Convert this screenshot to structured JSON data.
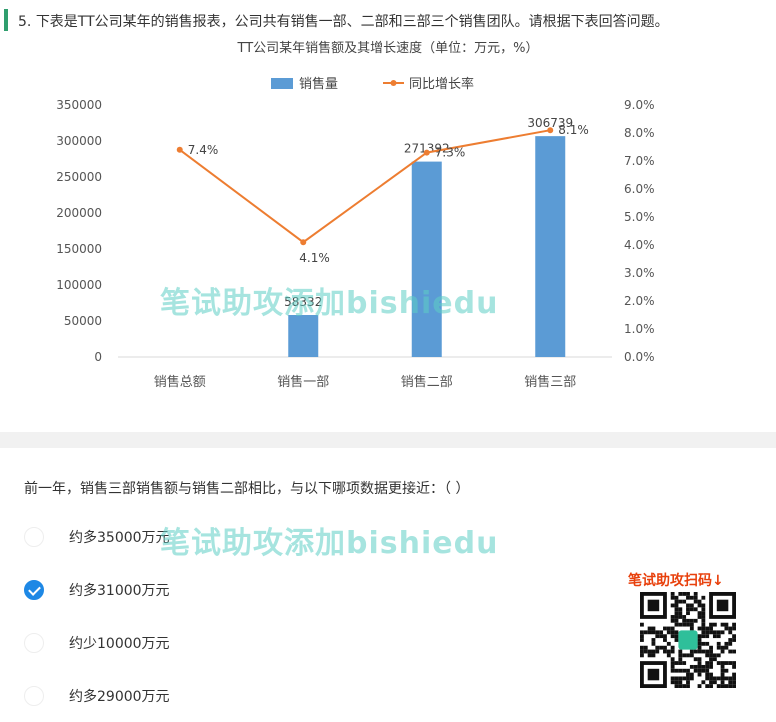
{
  "question": {
    "number": "5.",
    "text": "下表是TT公司某年的销售报表，公司共有销售一部、二部和三部三个销售团队。请根据下表回答问题。",
    "prompt": "前一年，销售三部销售额与销售二部相比，与以下哪项数据更接近：（ ）"
  },
  "options": [
    {
      "label": "约多35000万元",
      "selected": false
    },
    {
      "label": "约多31000万元",
      "selected": true
    },
    {
      "label": "约少10000万元",
      "selected": false
    },
    {
      "label": "约多29000万元",
      "selected": false
    }
  ],
  "watermark": "笔试助攻添加bishiedu",
  "qr_label": "笔试助攻扫码↓",
  "colors": {
    "bar": "#5b9bd5",
    "line": "#ed7d31",
    "check": "#1e88e5",
    "watermark": "#5ccdc4",
    "qr_label": "#e8400c"
  },
  "chart_data": {
    "type": "bar+line",
    "title": "TT公司某年销售额及其增长速度（单位：万元，%）",
    "categories": [
      "销售总额",
      "销售一部",
      "销售二部",
      "销售三部"
    ],
    "series": [
      {
        "name": "销售量",
        "type": "bar",
        "axis": "left",
        "values": [
          null,
          58332,
          271392,
          306739
        ],
        "labels": [
          "",
          "58332",
          "271392",
          "306739"
        ]
      },
      {
        "name": "同比增长率",
        "type": "line",
        "axis": "right",
        "values": [
          7.4,
          4.1,
          7.3,
          8.1
        ],
        "labels": [
          "7.4%",
          "4.1%",
          "7.3%",
          "8.1%"
        ]
      }
    ],
    "y_left": {
      "min": 0,
      "max": 350000,
      "ticks": [
        "0",
        "50000",
        "100000",
        "150000",
        "200000",
        "250000",
        "300000",
        "350000"
      ]
    },
    "y_right": {
      "min": 0,
      "max": 9,
      "ticks": [
        "0.0%",
        "1.0%",
        "2.0%",
        "3.0%",
        "4.0%",
        "5.0%",
        "6.0%",
        "7.0%",
        "8.0%",
        "9.0%"
      ]
    },
    "legend_position": "top"
  }
}
